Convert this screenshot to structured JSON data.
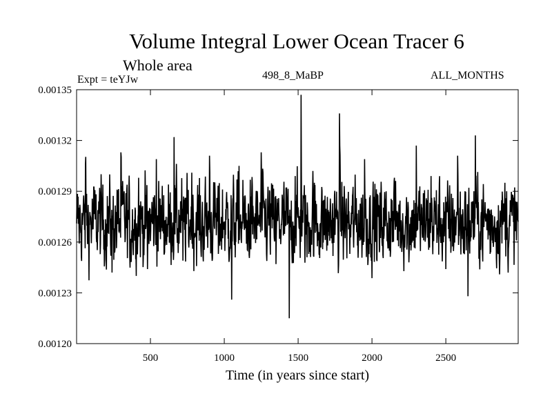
{
  "header": {
    "title": "Volume Integral Lower Ocean Tracer 6",
    "subtitle": "Whole area",
    "expt": "Expt = teYJw",
    "dataset": "498_8_MaBP",
    "period": "ALL_MONTHS"
  },
  "chart_data": {
    "type": "line",
    "title": "Volume Integral Lower Ocean Tracer 6",
    "xlabel": "Time (in years since start)",
    "ylabel": "",
    "xlim": [
      0,
      2990
    ],
    "ylim": [
      0.0012,
      0.00135
    ],
    "xticks": [
      500,
      1000,
      1500,
      2000,
      2500
    ],
    "xtick_labels": [
      "500",
      "1000",
      "1500",
      "2000",
      "2500"
    ],
    "yticks": [
      0.0012,
      0.00123,
      0.00126,
      0.00129,
      0.00132,
      0.00135
    ],
    "ytick_labels": [
      "0.00120",
      "0.00123",
      "0.00126",
      "0.00129",
      "0.00132",
      "0.00135"
    ],
    "series": [
      {
        "name": "Volume Integral Lower Ocean Tracer 6",
        "mean": 0.001272,
        "x": [
          0,
          60,
          150,
          240,
          300,
          360,
          420,
          480,
          540,
          600,
          660,
          720,
          780,
          840,
          900,
          960,
          1050,
          1100,
          1150,
          1250,
          1350,
          1440,
          1480,
          1520,
          1560,
          1600,
          1700,
          1780,
          1850,
          1950,
          2050,
          2150,
          2250,
          2300,
          2350,
          2400,
          2500,
          2580,
          2650,
          2700,
          2800,
          2900,
          2990
        ],
        "values": [
          0.001271,
          0.001306,
          0.001284,
          0.001242,
          0.001313,
          0.001251,
          0.001298,
          0.001244,
          0.001309,
          0.001258,
          0.001322,
          0.001249,
          0.001301,
          0.001262,
          0.001311,
          0.001253,
          0.001226,
          0.001305,
          0.001259,
          0.001313,
          0.001247,
          0.001215,
          0.001299,
          0.001347,
          0.001251,
          0.001302,
          0.001258,
          0.001336,
          0.001253,
          0.001309,
          0.001254,
          0.001296,
          0.001248,
          0.001317,
          0.001261,
          0.001299,
          0.001244,
          0.001311,
          0.001228,
          0.001323,
          0.001253,
          0.001295,
          0.001272
        ]
      }
    ]
  }
}
